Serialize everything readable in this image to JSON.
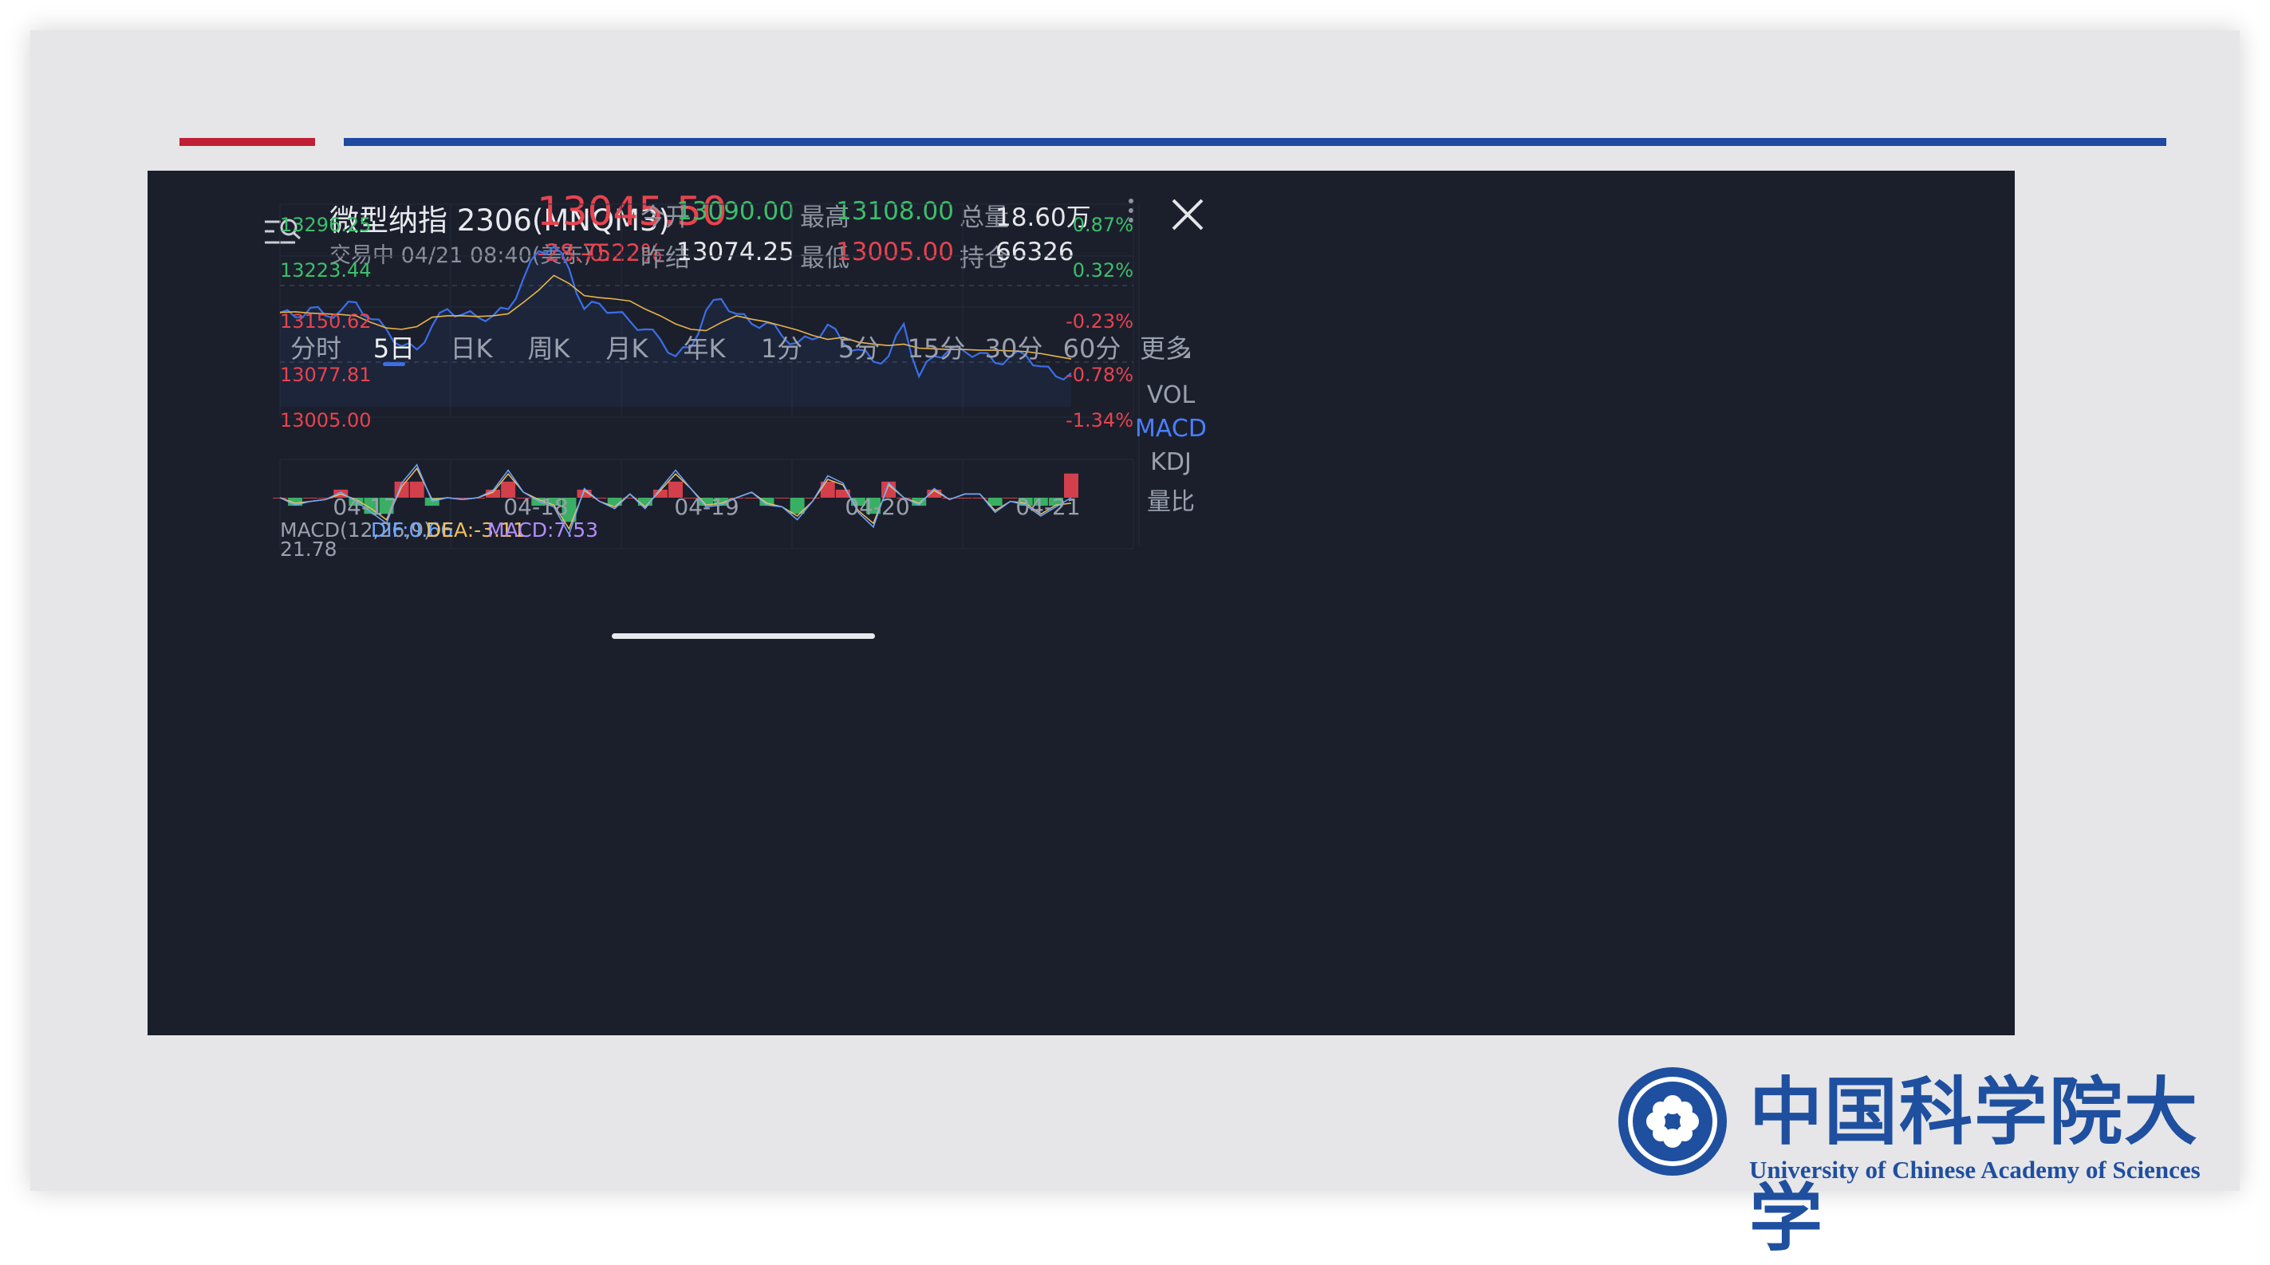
{
  "header": {
    "instrument_name": "微型纳指 2306(MNQM3)",
    "status": "交易中 04/21 08:40(美东)",
    "last_price": "13045.50",
    "change": "-28.75",
    "change_pct": "-0.22%",
    "open_label": "今开",
    "open_value": "13090.00",
    "prev_settle_label": "昨结",
    "prev_settle_value": "13074.25",
    "high_label": "最高",
    "high_value": "13108.00",
    "low_label": "最低",
    "low_value": "13005.00",
    "volume_label": "总量",
    "volume_value": "18.60万",
    "open_interest_label": "持仓",
    "open_interest_value": "66326"
  },
  "tabs": [
    "分时",
    "5日",
    "日K",
    "周K",
    "月K",
    "年K",
    "1分",
    "5分",
    "15分",
    "30分",
    "60分",
    "更多"
  ],
  "active_tab_index": 1,
  "side_indicators": [
    "VOL",
    "MACD",
    "KDJ",
    "量比"
  ],
  "active_side_index": 1,
  "macd_info": {
    "title": "MACD(12,26,9)",
    "dif": "DIF:0.66",
    "dea": "DEA:-3.11",
    "macd": "MACD:7.53",
    "max": "21.78"
  },
  "colors": {
    "background": "#1b1f2c",
    "price_line": "#3b6fe8",
    "avg_line": "#e8b44c",
    "up": "#e8434f",
    "down": "#3dbf6a",
    "dif": "#6fa8ff",
    "dea": "#f0c060",
    "macd_label": "#b48cff"
  },
  "chart_data": {
    "type": "line",
    "y_axis_left": [
      "13296.25",
      "13223.44",
      "13150.62",
      "13077.81",
      "13005.00"
    ],
    "y_axis_right": [
      "0.87%",
      "0.32%",
      "-0.23%",
      "-0.78%",
      "-1.34%"
    ],
    "x_labels": [
      "04-17",
      "04-18",
      "04-19",
      "04-20",
      "04-21"
    ],
    "ylim": [
      13005.0,
      13296.25
    ],
    "series": [
      {
        "name": "price",
        "values": [
          13145,
          13138,
          13152,
          13140,
          13148,
          13160,
          13135,
          13120,
          13095,
          13090,
          13125,
          13150,
          13142,
          13138,
          13140,
          13150,
          13195,
          13236,
          13243,
          13210,
          13150,
          13158,
          13145,
          13132,
          13120,
          13105,
          13080,
          13093,
          13148,
          13165,
          13143,
          13128,
          13130,
          13110,
          13100,
          13105,
          13127,
          13100,
          13090,
          13072,
          13080,
          13128,
          13050,
          13080,
          13090,
          13087,
          13085,
          13070,
          13080,
          13082,
          13065,
          13050,
          13055
        ]
      },
      {
        "name": "average",
        "values": [
          13145,
          13146,
          13144,
          13143,
          13142,
          13140,
          13130,
          13122,
          13120,
          13124,
          13138,
          13140,
          13140,
          13139,
          13140,
          13143,
          13160,
          13178,
          13200,
          13188,
          13170,
          13167,
          13165,
          13162,
          13150,
          13140,
          13128,
          13120,
          13118,
          13130,
          13140,
          13135,
          13131,
          13125,
          13119,
          13111,
          13105,
          13108,
          13101,
          13098,
          13096,
          13098,
          13092,
          13091,
          13090,
          13090,
          13089,
          13089,
          13088,
          13087,
          13084,
          13080,
          13076
        ]
      }
    ],
    "macd": {
      "ylim": [
        -20,
        21.78
      ],
      "dif": [
        0,
        -4,
        -2,
        -1,
        3,
        -2,
        -8,
        -14,
        8,
        18,
        -2,
        0,
        -1,
        0,
        4,
        15,
        3,
        -2,
        -5,
        -20,
        5,
        -2,
        -6,
        2,
        -6,
        5,
        15,
        5,
        -5,
        -4,
        0,
        3,
        -4,
        -5,
        -12,
        -2,
        12,
        8,
        -8,
        -16,
        8,
        0,
        -4,
        5,
        -1,
        2,
        2,
        -8,
        -2,
        -4,
        -10,
        -5,
        0
      ],
      "dea": [
        0,
        -3,
        -2,
        -1,
        2,
        -1,
        -6,
        -12,
        6,
        16,
        -1,
        0,
        -1,
        0,
        3,
        13,
        3,
        -1,
        -4,
        -17,
        4,
        -2,
        -5,
        2,
        -5,
        4,
        13,
        5,
        -4,
        -3,
        0,
        3,
        -3,
        -5,
        -10,
        -2,
        10,
        7,
        -7,
        -14,
        7,
        0,
        -3,
        4,
        -1,
        2,
        2,
        -7,
        -2,
        -3,
        -9,
        -4,
        -3
      ],
      "hist": [
        0,
        -2,
        0,
        0,
        2,
        -2,
        -4,
        -4,
        4,
        4,
        -2,
        0,
        0,
        0,
        2,
        4,
        0,
        -2,
        -2,
        -6,
        2,
        0,
        -2,
        0,
        -2,
        2,
        4,
        0,
        -2,
        -2,
        0,
        0,
        -2,
        0,
        -4,
        0,
        4,
        2,
        -2,
        -4,
        4,
        0,
        -2,
        2,
        0,
        0,
        0,
        -2,
        0,
        -2,
        -2,
        -2,
        6
      ]
    }
  },
  "logo": {
    "chinese_name": "中国科学院大学",
    "english_name": "University of  Chinese Academy of Sciences"
  }
}
